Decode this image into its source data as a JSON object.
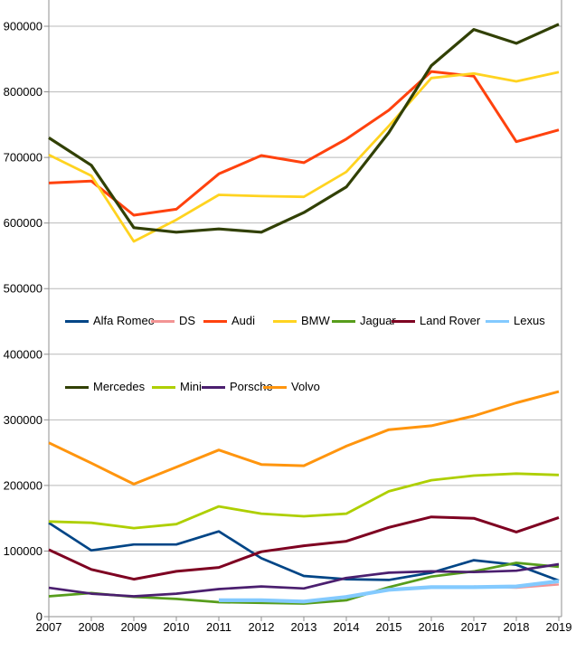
{
  "chart_data": {
    "type": "line",
    "title": "",
    "xlabel": "",
    "ylabel": "",
    "x": [
      2007,
      2008,
      2009,
      2010,
      2011,
      2012,
      2013,
      2014,
      2015,
      2016,
      2017,
      2018,
      2019
    ],
    "x_tick_labels": [
      "2007",
      "2008",
      "2009",
      "2010",
      "2011",
      "2012",
      "2013",
      "2014",
      "2015",
      "2016",
      "2017",
      "2018",
      "2019"
    ],
    "y_ticks": [
      0,
      100000,
      200000,
      300000,
      400000,
      500000,
      600000,
      700000,
      800000,
      900000
    ],
    "y_tick_labels": [
      "0",
      "100000",
      "200000",
      "300000",
      "400000",
      "500000",
      "600000",
      "700000",
      "800000",
      "900000"
    ],
    "ylim": [
      0,
      940000
    ],
    "grid": "horizontal",
    "legend_position": "inside plot, two rows",
    "legend_rows": [
      [
        "Alfa Romeo",
        "DS",
        "Audi",
        "BMW",
        "Jaguar",
        "Land Rover",
        "Lexus"
      ],
      [
        "Mercedes",
        "Mini",
        "Porsche",
        "Volvo"
      ]
    ],
    "series": [
      {
        "name": "Alfa Romeo",
        "color": "#004586",
        "stroke_width": 2.7,
        "values": [
          143000,
          101000,
          110000,
          110000,
          130000,
          89000,
          62000,
          57000,
          56000,
          67000,
          86000,
          79000,
          55000
        ]
      },
      {
        "name": "DS",
        "color": "#F29494",
        "stroke_width": 2.4,
        "values": [
          null,
          null,
          null,
          null,
          null,
          null,
          null,
          null,
          null,
          null,
          46000,
          44000,
          49000
        ]
      },
      {
        "name": "Audi",
        "color": "#FF420E",
        "stroke_width": 3,
        "values": [
          661000,
          664000,
          612000,
          621000,
          675000,
          703000,
          692000,
          728000,
          772000,
          831000,
          824000,
          724000,
          742000
        ]
      },
      {
        "name": "BMW",
        "color": "#FFD320",
        "stroke_width": 2.8,
        "values": [
          704000,
          672000,
          572000,
          605000,
          643000,
          641000,
          640000,
          678000,
          748000,
          821000,
          828000,
          816000,
          830000
        ]
      },
      {
        "name": "Jaguar",
        "color": "#579D1C",
        "stroke_width": 2.7,
        "values": [
          31000,
          36000,
          30000,
          27000,
          22000,
          21000,
          20000,
          25000,
          45000,
          61000,
          69000,
          82000,
          76000
        ]
      },
      {
        "name": "Land Rover",
        "color": "#7E0021",
        "stroke_width": 3,
        "values": [
          102000,
          72000,
          57000,
          69000,
          75000,
          99000,
          108000,
          115000,
          136000,
          152000,
          150000,
          129000,
          151000
        ]
      },
      {
        "name": "Lexus",
        "color": "#83CAFF",
        "stroke_width": 4.2,
        "values": [
          null,
          null,
          null,
          null,
          25000,
          25000,
          23000,
          30000,
          41000,
          45000,
          45000,
          46000,
          54000
        ]
      },
      {
        "name": "Mercedes",
        "color": "#314004",
        "stroke_width": 3.2,
        "values": [
          730000,
          688000,
          593000,
          586000,
          591000,
          586000,
          616000,
          655000,
          738000,
          840000,
          895000,
          874000,
          903000
        ]
      },
      {
        "name": "Mini",
        "color": "#AECF00",
        "stroke_width": 2.8,
        "values": [
          145000,
          143000,
          135000,
          141000,
          168000,
          157000,
          153000,
          157000,
          191000,
          208000,
          215000,
          218000,
          216000
        ]
      },
      {
        "name": "Porsche",
        "color": "#4B1F6F",
        "stroke_width": 2.7,
        "values": [
          44000,
          35000,
          31000,
          35000,
          42000,
          46000,
          43000,
          59000,
          67000,
          69000,
          68000,
          70000,
          80000
        ]
      },
      {
        "name": "Volvo",
        "color": "#FF950E",
        "stroke_width": 3,
        "values": [
          265000,
          234000,
          202000,
          228000,
          254000,
          232000,
          230000,
          260000,
          285000,
          291000,
          306000,
          326000,
          343000
        ]
      }
    ]
  },
  "colors": {
    "background": "#ffffff",
    "gridline": "#b9b9b9",
    "axis": "#8f8f8f",
    "text": "#000000"
  }
}
